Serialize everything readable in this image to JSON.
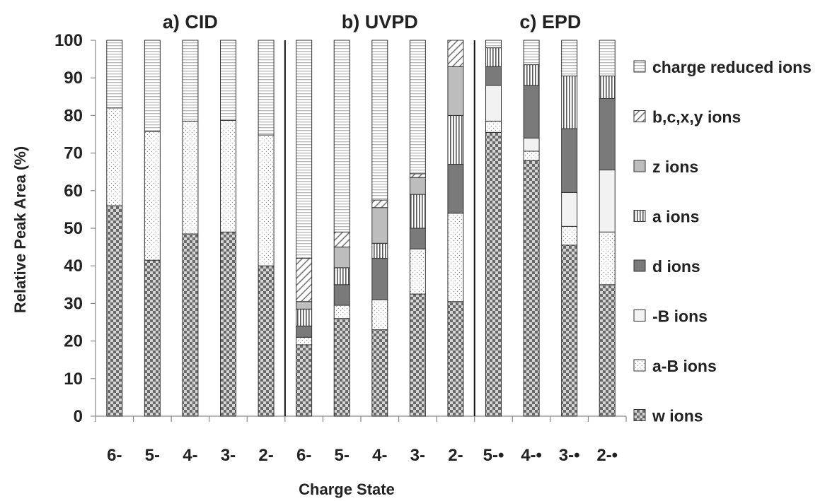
{
  "chart_data": {
    "type": "bar",
    "stacked": true,
    "ylabel": "Relative Peak Area (%)",
    "xlabel": "Charge State",
    "ylim": [
      0,
      100
    ],
    "yticks": [
      0,
      10,
      20,
      30,
      40,
      50,
      60,
      70,
      80,
      90,
      100
    ],
    "panels": [
      {
        "title": "a) CID",
        "categories": [
          "6-",
          "5-",
          "4-",
          "3-",
          "2-"
        ]
      },
      {
        "title": "b) UVPD",
        "categories": [
          "6-",
          "5-",
          "4-",
          "3-",
          "2-"
        ]
      },
      {
        "title": "c) EPD",
        "categories": [
          "5-•",
          "4-•",
          "3-•",
          "2-•"
        ]
      }
    ],
    "categories": [
      "6-",
      "5-",
      "4-",
      "3-",
      "2-",
      "6-",
      "5-",
      "4-",
      "3-",
      "2-",
      "5-•",
      "4-•",
      "3-•",
      "2-•"
    ],
    "series": [
      {
        "name": "w ions",
        "pattern": "checker",
        "values": [
          56,
          41.5,
          48.5,
          49,
          40,
          19,
          26,
          23,
          32.5,
          30.5,
          75.5,
          68,
          45.5,
          35
        ]
      },
      {
        "name": "a-B ions",
        "pattern": "dots",
        "values": [
          26,
          34.2,
          30,
          29.7,
          34.8,
          2,
          3.5,
          8,
          12,
          23.5,
          3,
          2.5,
          5,
          14
        ]
      },
      {
        "name": "-B ions",
        "pattern": "solid-light",
        "values": [
          0,
          0,
          0,
          0,
          0,
          0,
          0,
          0,
          0,
          0,
          9.5,
          3.5,
          9,
          16.5
        ]
      },
      {
        "name": "d ions",
        "pattern": "solid-dark",
        "values": [
          0,
          0,
          0,
          0,
          0,
          3,
          5.5,
          11,
          5.5,
          13,
          5,
          14,
          17,
          19
        ]
      },
      {
        "name": "a ions",
        "pattern": "vlines",
        "values": [
          0,
          0,
          0,
          0,
          0,
          4.5,
          4.5,
          4,
          9,
          13,
          5,
          5.5,
          14,
          6
        ]
      },
      {
        "name": "z ions",
        "pattern": "solid-mid",
        "values": [
          0,
          0,
          0,
          0,
          0,
          2,
          5.5,
          9.5,
          4.5,
          13,
          0,
          0,
          0,
          0
        ]
      },
      {
        "name": "b,c,x,y ions",
        "pattern": "diag",
        "values": [
          0,
          0,
          0,
          0,
          0,
          11.5,
          4,
          2,
          1,
          7,
          0,
          0,
          0,
          0
        ]
      },
      {
        "name": "charge reduced  ions",
        "pattern": "hlines",
        "values": [
          18,
          24.3,
          21.5,
          21.3,
          25.2,
          58,
          51,
          42.5,
          35.5,
          0,
          2,
          6.5,
          9.5,
          9.5
        ]
      }
    ],
    "legend": {
      "placement": "right",
      "order": [
        "charge reduced  ions",
        "b,c,x,y ions",
        "z ions",
        "a ions",
        "d ions",
        "-B ions",
        "a-B ions",
        "w ions"
      ]
    },
    "separators_after_category_index": [
      4,
      9
    ],
    "grid": false
  }
}
